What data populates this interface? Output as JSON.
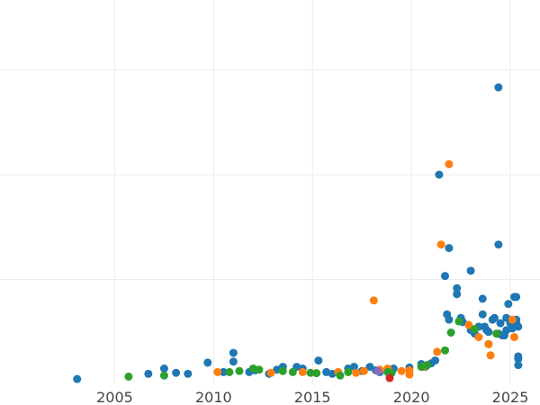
{
  "chart_data": {
    "type": "scatter",
    "title": "",
    "xlabel": "",
    "ylabel": "",
    "xlim": [
      1999.2,
      2026.5
    ],
    "ylim": [
      0,
      11
    ],
    "grid": true,
    "legend": "none",
    "x_ticks": [
      2005,
      2010,
      2015,
      2020,
      2025
    ],
    "x_tick_labels": [
      "2005",
      "2010",
      "2015",
      "2020",
      "2025"
    ],
    "y_ticks": [
      3,
      6,
      9
    ],
    "y_tick_labels": [],
    "series": [
      {
        "color": "#1f77b4",
        "points": [
          [
            2003.1,
            0.15
          ],
          [
            2006.7,
            0.3
          ],
          [
            2007.5,
            0.45
          ],
          [
            2008.1,
            0.33
          ],
          [
            2008.7,
            0.3
          ],
          [
            2009.7,
            0.62
          ],
          [
            2010.5,
            0.35
          ],
          [
            2011.0,
            0.65
          ],
          [
            2011.0,
            0.9
          ],
          [
            2011.8,
            0.35
          ],
          [
            2012.1,
            0.4
          ],
          [
            2012.8,
            0.3
          ],
          [
            2013.2,
            0.42
          ],
          [
            2013.5,
            0.5
          ],
          [
            2014.2,
            0.5
          ],
          [
            2014.5,
            0.45
          ],
          [
            2015.3,
            0.68
          ],
          [
            2015.7,
            0.35
          ],
          [
            2016.0,
            0.3
          ],
          [
            2016.3,
            0.33
          ],
          [
            2016.8,
            0.45
          ],
          [
            2017.1,
            0.5
          ],
          [
            2017.5,
            0.38
          ],
          [
            2017.9,
            0.5
          ],
          [
            2018.2,
            0.4
          ],
          [
            2018.4,
            0.35
          ],
          [
            2019.1,
            0.45
          ],
          [
            2019.9,
            0.48
          ],
          [
            2020.5,
            0.58
          ],
          [
            2020.7,
            0.5
          ],
          [
            2021.0,
            0.6
          ],
          [
            2021.2,
            0.68
          ],
          [
            2021.4,
            6.0
          ],
          [
            2021.7,
            3.1
          ],
          [
            2021.8,
            2.0
          ],
          [
            2021.9,
            1.85
          ],
          [
            2021.9,
            3.9
          ],
          [
            2022.3,
            2.75
          ],
          [
            2022.3,
            2.58
          ],
          [
            2022.5,
            1.9
          ],
          [
            2022.6,
            1.78
          ],
          [
            2023.0,
            3.25
          ],
          [
            2023.0,
            1.55
          ],
          [
            2023.2,
            1.45
          ],
          [
            2023.4,
            1.65
          ],
          [
            2023.6,
            2.45
          ],
          [
            2023.6,
            2.0
          ],
          [
            2023.7,
            1.65
          ],
          [
            2023.8,
            1.55
          ],
          [
            2023.9,
            1.5
          ],
          [
            2023.9,
            1.15
          ],
          [
            2024.1,
            1.85
          ],
          [
            2024.2,
            1.9
          ],
          [
            2024.4,
            1.45
          ],
          [
            2024.4,
            4.0
          ],
          [
            2024.4,
            8.5
          ],
          [
            2024.5,
            1.75
          ],
          [
            2024.6,
            1.4
          ],
          [
            2024.7,
            1.4
          ],
          [
            2024.8,
            1.55
          ],
          [
            2024.8,
            1.9
          ],
          [
            2024.9,
            2.3
          ],
          [
            2025.0,
            1.75
          ],
          [
            2025.1,
            1.6
          ],
          [
            2025.2,
            2.5
          ],
          [
            2025.3,
            2.5
          ],
          [
            2025.3,
            1.85
          ],
          [
            2025.3,
            1.75
          ],
          [
            2025.4,
            1.65
          ],
          [
            2025.4,
            0.8
          ],
          [
            2025.4,
            0.73
          ],
          [
            2025.4,
            0.55
          ]
        ]
      },
      {
        "color": "#ff7f0e",
        "points": [
          [
            2010.2,
            0.35
          ],
          [
            2012.9,
            0.33
          ],
          [
            2014.5,
            0.35
          ],
          [
            2016.3,
            0.35
          ],
          [
            2017.2,
            0.33
          ],
          [
            2017.6,
            0.38
          ],
          [
            2018.1,
            2.4
          ],
          [
            2018.4,
            0.42
          ],
          [
            2018.8,
            0.45
          ],
          [
            2019.5,
            0.38
          ],
          [
            2019.9,
            0.28
          ],
          [
            2019.9,
            0.4
          ],
          [
            2020.6,
            0.5
          ],
          [
            2021.3,
            0.93
          ],
          [
            2021.5,
            4.0
          ],
          [
            2021.9,
            6.3
          ],
          [
            2022.9,
            1.7
          ],
          [
            2023.4,
            1.35
          ],
          [
            2023.9,
            1.15
          ],
          [
            2024.0,
            0.83
          ],
          [
            2025.1,
            1.85
          ],
          [
            2025.2,
            1.35
          ]
        ]
      },
      {
        "color": "#2ca02c",
        "points": [
          [
            2005.7,
            0.22
          ],
          [
            2007.5,
            0.25
          ],
          [
            2010.8,
            0.35
          ],
          [
            2011.3,
            0.38
          ],
          [
            2012.0,
            0.45
          ],
          [
            2012.3,
            0.42
          ],
          [
            2013.5,
            0.38
          ],
          [
            2014.0,
            0.35
          ],
          [
            2014.9,
            0.33
          ],
          [
            2015.2,
            0.32
          ],
          [
            2016.4,
            0.25
          ],
          [
            2016.8,
            0.35
          ],
          [
            2018.8,
            0.35
          ],
          [
            2019.0,
            0.33
          ],
          [
            2020.5,
            0.5
          ],
          [
            2020.8,
            0.55
          ],
          [
            2021.7,
            0.97
          ],
          [
            2022.0,
            1.48
          ],
          [
            2022.4,
            1.8
          ],
          [
            2023.2,
            1.58
          ],
          [
            2024.3,
            1.45
          ]
        ]
      },
      {
        "color": "#d62728",
        "points": [
          [
            2018.9,
            0.18
          ]
        ]
      },
      {
        "color": "#9467bd",
        "points": [
          [
            2018.3,
            0.38
          ]
        ]
      }
    ]
  }
}
